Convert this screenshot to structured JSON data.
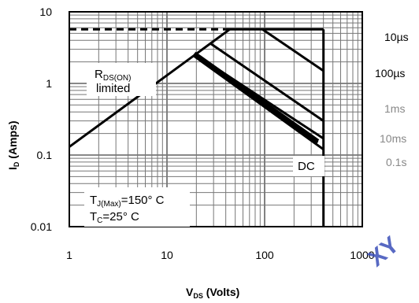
{
  "chart_data": {
    "type": "line",
    "title": "",
    "xlabel": {
      "main": "V",
      "sub": "DS",
      "unit": " (Volts)"
    },
    "ylabel": {
      "main": "I",
      "sub": "D",
      "unit": " (Amps)"
    },
    "x_scale": "log",
    "y_scale": "log",
    "xlim": [
      1,
      1000
    ],
    "ylim": [
      0.01,
      10
    ],
    "grid": true,
    "x_tick_labels": [
      {
        "value": 1,
        "label": "1"
      },
      {
        "value": 10,
        "label": "10"
      },
      {
        "value": 100,
        "label": "100"
      },
      {
        "value": 1000,
        "label": "1000"
      }
    ],
    "y_tick_labels": [
      {
        "value": 10,
        "label": "10"
      },
      {
        "value": 1,
        "label": "1"
      },
      {
        "value": 0.1,
        "label": "0.1"
      },
      {
        "value": 0.01,
        "label": "0.01"
      }
    ],
    "limit_lines": {
      "rdson_limit": {
        "dashed": true,
        "points": [
          [
            1,
            5.7
          ],
          [
            40,
            5.7
          ]
        ]
      },
      "current_limit": {
        "points": [
          [
            40,
            5.7
          ],
          [
            400,
            5.7
          ]
        ]
      },
      "voltage_limit": {
        "points": [
          [
            400,
            5.7
          ],
          [
            400,
            0.01
          ]
        ]
      },
      "rdson_slope": {
        "points": [
          [
            1,
            0.13
          ],
          [
            44,
            5.7
          ]
        ]
      }
    },
    "series": [
      {
        "label": "10µs",
        "points": [
          [
            95,
            5.7
          ],
          [
            400,
            1.5
          ]
        ]
      },
      {
        "label": "100µs",
        "points": [
          [
            28,
            3.6
          ],
          [
            400,
            0.3
          ]
        ]
      },
      {
        "label": "1ms",
        "points": [
          [
            19,
            2.6
          ],
          [
            400,
            0.17
          ]
        ]
      },
      {
        "label": "10ms",
        "points": [
          [
            19,
            2.4
          ],
          [
            400,
            0.12
          ]
        ]
      },
      {
        "label": "0.1s",
        "points": [
          [
            20,
            2.5
          ],
          [
            350,
            0.15
          ]
        ]
      },
      {
        "label": "DC",
        "points": [
          [
            19,
            2.6
          ],
          [
            350,
            0.155
          ]
        ]
      }
    ],
    "annotations": {
      "rdson_main": "R",
      "rdson_sub": "DS(ON)",
      "rdson_limited": "limited",
      "tj_main": "T",
      "tj_sub": "J(Max)",
      "tj_value": "=150° C",
      "tc_main": "T",
      "tc_sub": "C",
      "tc_value": "=25° C"
    },
    "colors": {
      "curve": "#000000",
      "grid": "#777777",
      "faded_label": "#888888",
      "watermark": "#3b4fb8"
    }
  },
  "watermark": "XY"
}
